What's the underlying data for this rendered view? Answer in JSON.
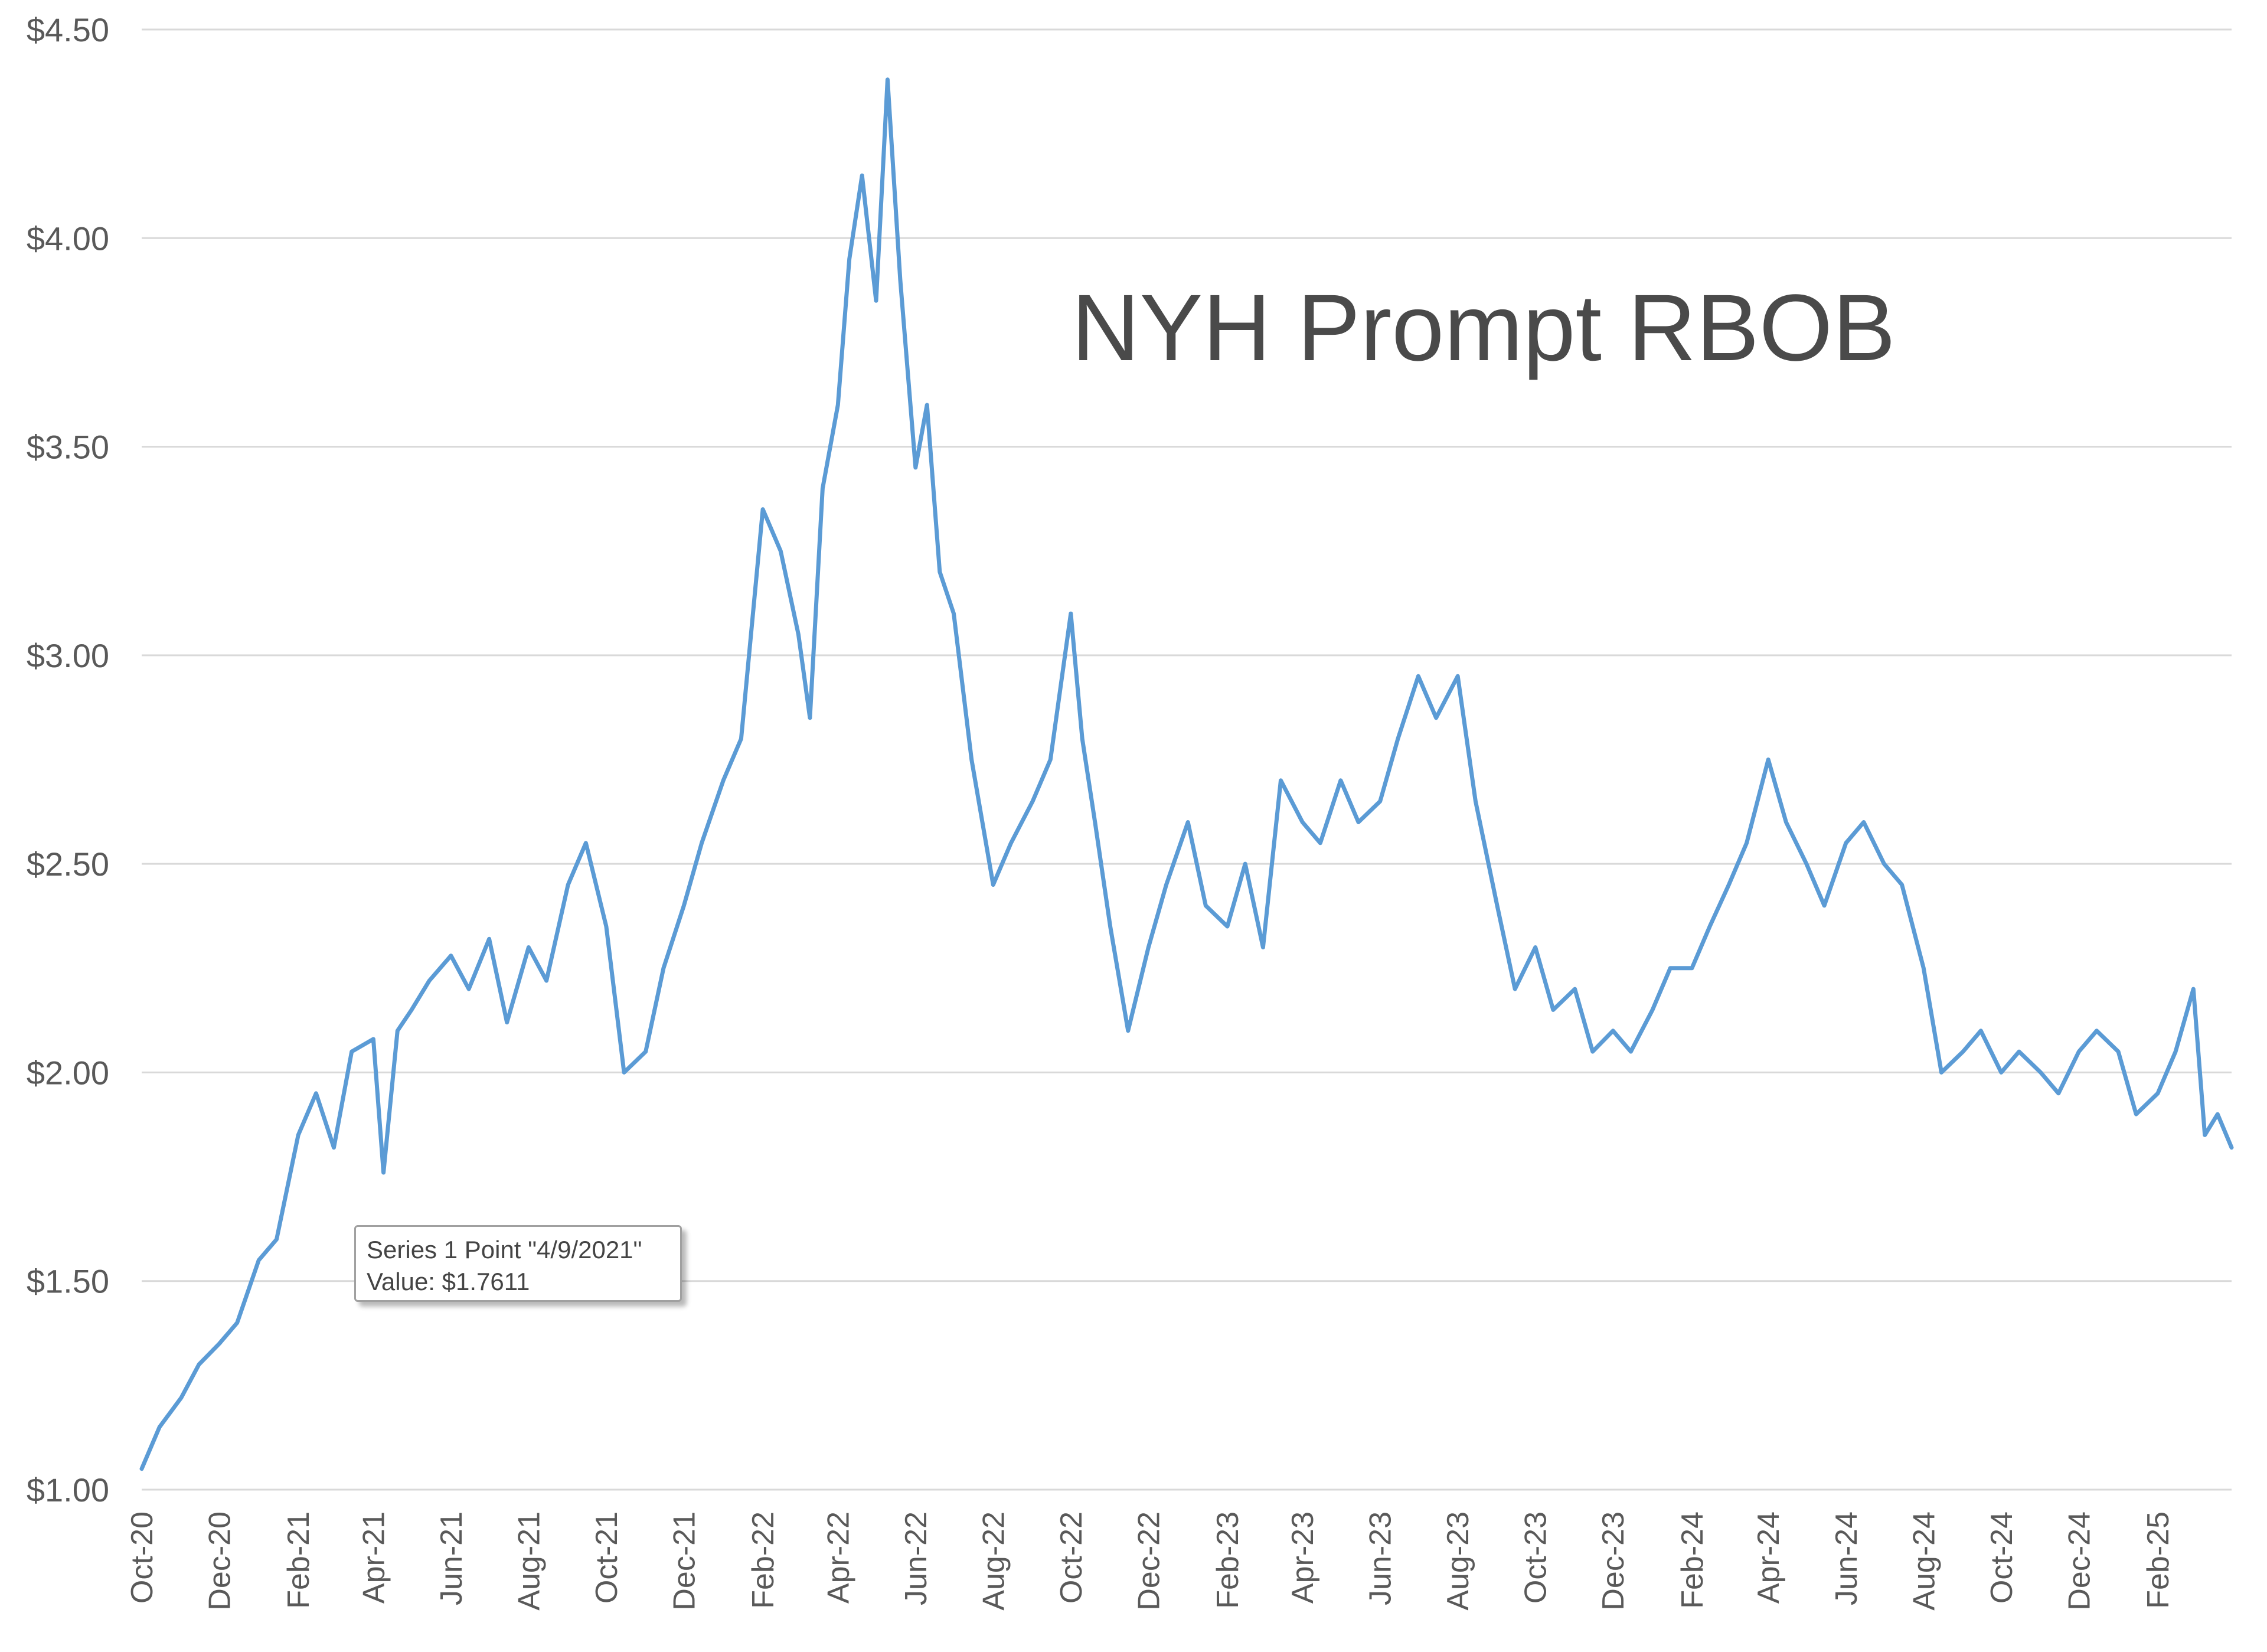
{
  "colors": {
    "series": "#5b9bd5",
    "grid": "#d9d9d9",
    "text": "#595959"
  },
  "tooltip": {
    "line1": "Series 1 Point \"4/9/2021\"",
    "line2": "Value:  $1.7611"
  },
  "chart_data": {
    "type": "line",
    "title": "NYH Prompt RBOB",
    "xlabel": "",
    "ylabel": "",
    "ylim": [
      1.0,
      4.5
    ],
    "y_ticks": [
      "$1.00",
      "$1.50",
      "$2.00",
      "$2.50",
      "$3.00",
      "$3.50",
      "$4.00",
      "$4.50"
    ],
    "y_tick_values": [
      1.0,
      1.5,
      2.0,
      2.5,
      3.0,
      3.5,
      4.0,
      4.5
    ],
    "x_ticks": [
      "Oct-20",
      "Dec-20",
      "Feb-21",
      "Apr-21",
      "Jun-21",
      "Aug-21",
      "Oct-21",
      "Dec-21",
      "Feb-22",
      "Apr-22",
      "Jun-22",
      "Aug-22",
      "Oct-22",
      "Dec-22",
      "Feb-23",
      "Apr-23",
      "Jun-23",
      "Aug-23",
      "Oct-23",
      "Dec-23",
      "Feb-24",
      "Apr-24",
      "Jun-24",
      "Aug-24",
      "Oct-24",
      "Dec-24",
      "Feb-25"
    ],
    "xlim": [
      "2020-10-01",
      "2025-03-31"
    ],
    "grid": true,
    "legend": "none",
    "series": [
      {
        "x": [
          "2020-10-01",
          "2020-10-15",
          "2020-11-01",
          "2020-11-15",
          "2020-12-01",
          "2020-12-15",
          "2021-01-01",
          "2021-01-15",
          "2021-02-01",
          "2021-02-15",
          "2021-03-01",
          "2021-03-15",
          "2021-04-01",
          "2021-04-09",
          "2021-04-20",
          "2021-05-01",
          "2021-05-15",
          "2021-06-01",
          "2021-06-15",
          "2021-07-01",
          "2021-07-15",
          "2021-08-01",
          "2021-08-15",
          "2021-09-01",
          "2021-09-15",
          "2021-10-01",
          "2021-10-15",
          "2021-11-01",
          "2021-11-15",
          "2021-12-01",
          "2021-12-15",
          "2022-01-01",
          "2022-01-15",
          "2022-02-01",
          "2022-02-15",
          "2022-03-01",
          "2022-03-10",
          "2022-03-20",
          "2022-04-01",
          "2022-04-10",
          "2022-04-20",
          "2022-05-01",
          "2022-05-10",
          "2022-05-20",
          "2022-06-01",
          "2022-06-10",
          "2022-06-20",
          "2022-07-01",
          "2022-07-15",
          "2022-08-01",
          "2022-08-15",
          "2022-09-01",
          "2022-09-15",
          "2022-10-01",
          "2022-10-10",
          "2022-10-20",
          "2022-11-01",
          "2022-11-15",
          "2022-12-01",
          "2022-12-15",
          "2023-01-01",
          "2023-01-15",
          "2023-02-01",
          "2023-02-15",
          "2023-03-01",
          "2023-03-15",
          "2023-04-01",
          "2023-04-15",
          "2023-05-01",
          "2023-05-15",
          "2023-06-01",
          "2023-06-15",
          "2023-07-01",
          "2023-07-15",
          "2023-08-01",
          "2023-08-15",
          "2023-09-01",
          "2023-09-15",
          "2023-10-01",
          "2023-10-15",
          "2023-11-01",
          "2023-11-15",
          "2023-12-01",
          "2023-12-15",
          "2024-01-01",
          "2024-01-15",
          "2024-02-01",
          "2024-02-15",
          "2024-03-01",
          "2024-03-15",
          "2024-04-01",
          "2024-04-15",
          "2024-05-01",
          "2024-05-15",
          "2024-06-01",
          "2024-06-15",
          "2024-07-01",
          "2024-07-15",
          "2024-08-01",
          "2024-08-15",
          "2024-09-01",
          "2024-09-15",
          "2024-10-01",
          "2024-10-15",
          "2024-11-01",
          "2024-11-15",
          "2024-12-01",
          "2024-12-15",
          "2025-01-01",
          "2025-01-15",
          "2025-02-01",
          "2025-02-15",
          "2025-03-01",
          "2025-03-10",
          "2025-03-20",
          "2025-03-31"
        ],
        "values": [
          1.05,
          1.15,
          1.22,
          1.3,
          1.35,
          1.4,
          1.55,
          1.6,
          1.85,
          1.95,
          1.82,
          2.05,
          2.08,
          1.76,
          2.1,
          2.15,
          2.22,
          2.28,
          2.2,
          2.32,
          2.12,
          2.3,
          2.22,
          2.45,
          2.55,
          2.35,
          2.0,
          2.05,
          2.25,
          2.4,
          2.55,
          2.7,
          2.8,
          3.35,
          3.25,
          3.05,
          2.85,
          3.4,
          3.6,
          3.95,
          4.15,
          3.85,
          4.38,
          3.9,
          3.45,
          3.6,
          3.2,
          3.1,
          2.75,
          2.45,
          2.55,
          2.65,
          2.75,
          3.1,
          2.8,
          2.6,
          2.35,
          2.1,
          2.3,
          2.45,
          2.6,
          2.4,
          2.35,
          2.5,
          2.3,
          2.7,
          2.6,
          2.55,
          2.7,
          2.6,
          2.65,
          2.8,
          2.95,
          2.85,
          2.95,
          2.65,
          2.4,
          2.2,
          2.3,
          2.15,
          2.2,
          2.05,
          2.1,
          2.05,
          2.15,
          2.25,
          2.25,
          2.35,
          2.45,
          2.55,
          2.75,
          2.6,
          2.5,
          2.4,
          2.55,
          2.6,
          2.5,
          2.45,
          2.25,
          2.0,
          2.05,
          2.1,
          2.0,
          2.05,
          2.0,
          1.95,
          2.05,
          2.1,
          2.05,
          1.9,
          1.95,
          2.05,
          2.2,
          1.85,
          1.9,
          1.82
        ]
      }
    ]
  }
}
